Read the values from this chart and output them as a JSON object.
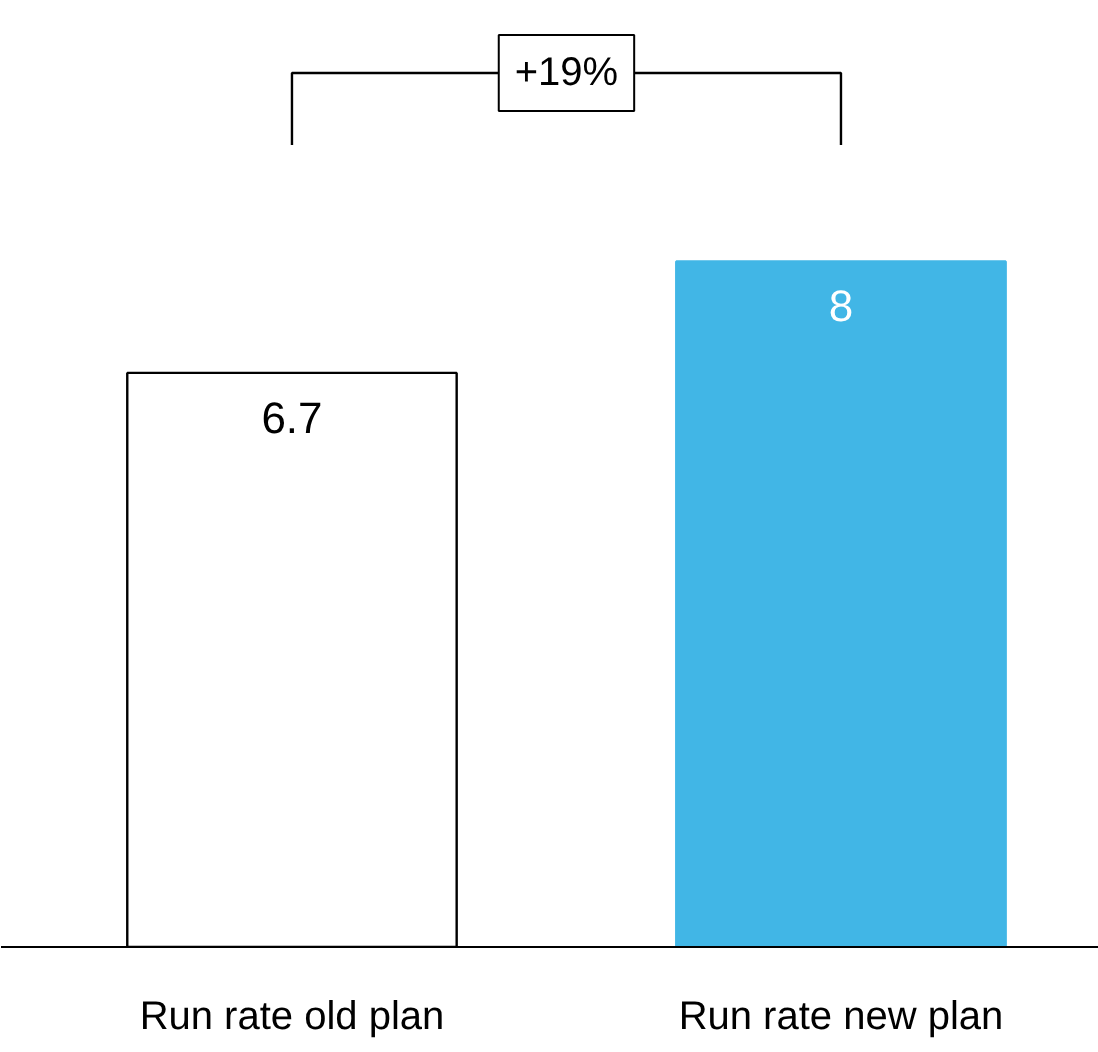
{
  "chart_data": {
    "type": "bar",
    "categories": [
      "Run rate old plan",
      "Run rate new plan"
    ],
    "values": [
      6.7,
      8
    ],
    "colors": [
      "#ffffff",
      "#41b6e6"
    ],
    "data_labels": true,
    "grid": false,
    "tick_labels": "x",
    "annotations": [
      "+19%"
    ]
  }
}
